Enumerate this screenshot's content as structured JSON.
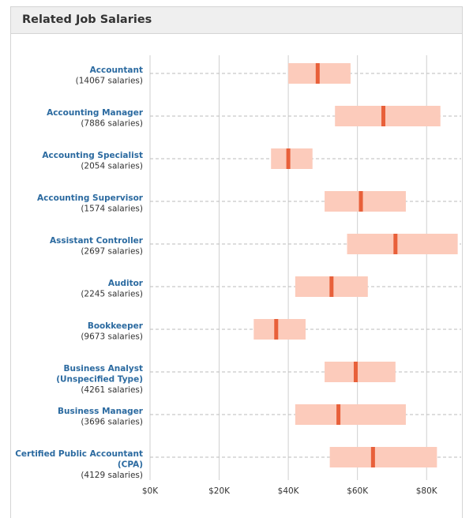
{
  "chart_data": {
    "type": "range",
    "title": "Related Job Salaries",
    "categories": [
      [
        "Accountant"
      ],
      [
        "Accounting Manager"
      ],
      [
        "Accounting Specialist"
      ],
      [
        "Accounting Supervisor"
      ],
      [
        "Assistant Controller"
      ],
      [
        "Auditor"
      ],
      [
        "Bookkeeper"
      ],
      [
        "Business Analyst",
        "(Unspecified Type)"
      ],
      [
        "Business Manager"
      ],
      [
        "Certified Public Accountant",
        "(CPA)"
      ]
    ],
    "counts": [
      "(14067 salaries)",
      "(7886 salaries)",
      "(2054 salaries)",
      "(1574 salaries)",
      "(2697 salaries)",
      "(2245 salaries)",
      "(9673 salaries)",
      "(4261 salaries)",
      "(3696 salaries)",
      "(4129 salaries)"
    ],
    "low": [
      40,
      53.5,
      35,
      50.5,
      57,
      42,
      30,
      50.5,
      42,
      52
    ],
    "high": [
      58,
      84,
      47,
      74,
      89,
      63,
      45,
      71,
      74,
      83
    ],
    "median": [
      48.5,
      67.5,
      40,
      61,
      71,
      52.5,
      36.5,
      59.5,
      54.5,
      64.5
    ],
    "range_color": "#fccbbb",
    "median_color": "#e8603a",
    "xlim": [
      0,
      90
    ],
    "xticks": [
      {
        "value": 0,
        "label": "$0K"
      },
      {
        "value": 20,
        "label": "$20K"
      },
      {
        "value": 40,
        "label": "$40K"
      },
      {
        "value": 60,
        "label": "$60K"
      },
      {
        "value": 80,
        "label": "$80K"
      }
    ],
    "grid": true
  }
}
